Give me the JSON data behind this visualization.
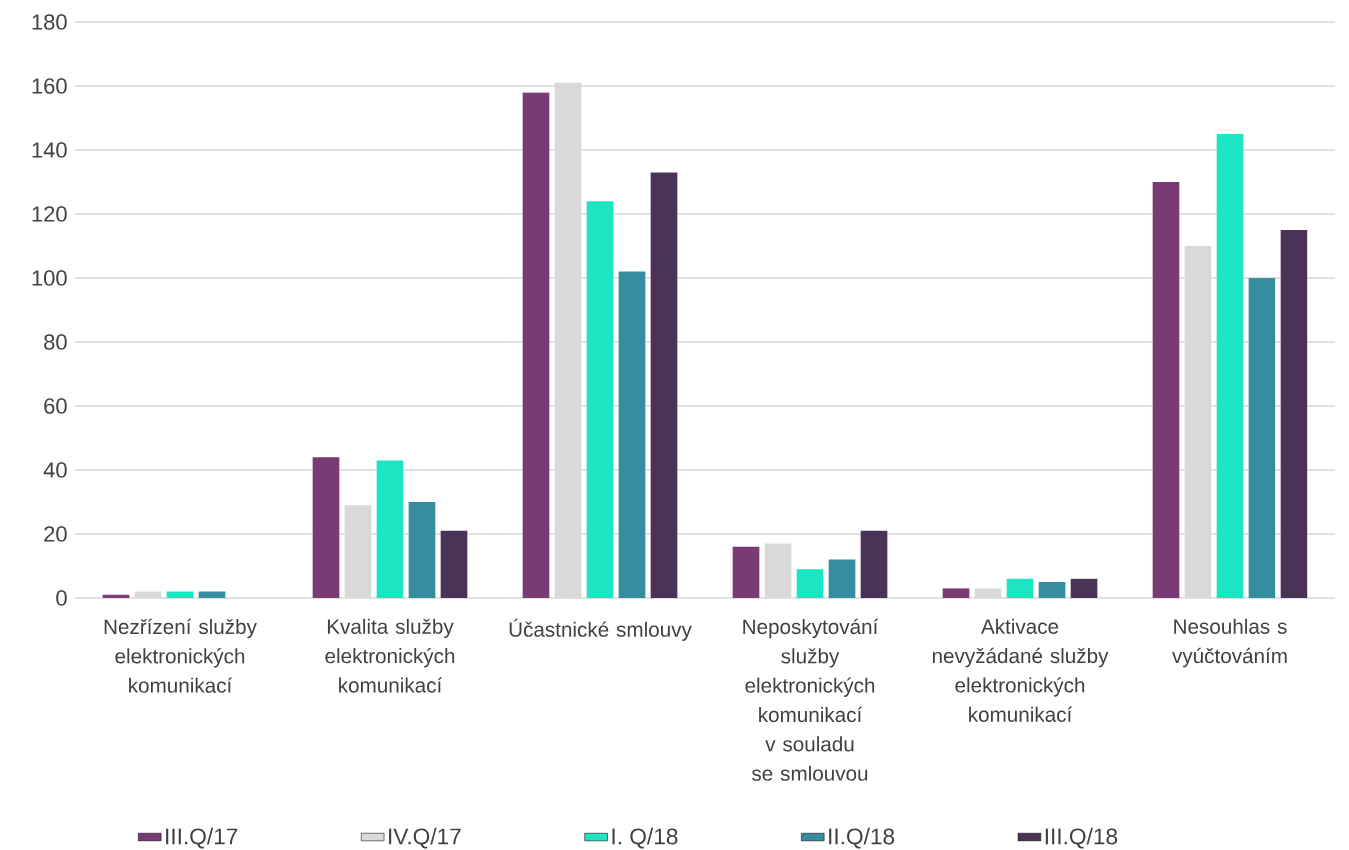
{
  "chart_data": {
    "type": "bar",
    "categories": [
      "Nezřízení služby elektronických komunikací",
      "Kvalita služby elektronických komunikací",
      "Účastnické smlouvy",
      "Neposkytování služby elektronických komunikací v souladu se smlouvou",
      "Aktivace nevyžádané služby elektronických komunikací",
      "Nesouhlas s vyúčtováním"
    ],
    "series": [
      {
        "name": "III.Q/17",
        "color": "#7a3a73",
        "values": [
          1,
          44,
          158,
          16,
          3,
          130
        ]
      },
      {
        "name": "IV.Q/17",
        "color": "#d9d9d9",
        "values": [
          2,
          29,
          161,
          17,
          3,
          110
        ]
      },
      {
        "name": "I. Q/18",
        "color": "#1be5c3",
        "values": [
          2,
          43,
          124,
          9,
          6,
          145
        ]
      },
      {
        "name": "II.Q/18",
        "color": "#358d9e",
        "values": [
          2,
          30,
          102,
          12,
          5,
          100
        ]
      },
      {
        "name": "III.Q/18",
        "color": "#4b3358",
        "values": [
          0,
          21,
          133,
          21,
          6,
          115
        ]
      }
    ],
    "ylim": [
      0,
      180
    ],
    "yticks": [
      0,
      20,
      40,
      60,
      80,
      100,
      120,
      140,
      160,
      180
    ],
    "grid": "y",
    "legend": "bottom"
  }
}
